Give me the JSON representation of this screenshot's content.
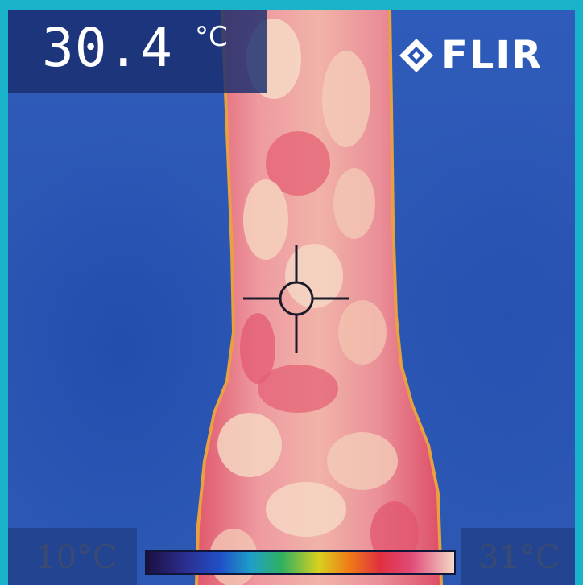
{
  "readout": {
    "value": "30.4",
    "unit": "°C"
  },
  "logo": {
    "text": "FLIR",
    "mark_icon": "flir-diamond-logo-icon"
  },
  "scale": {
    "min_label": "10°C",
    "max_label": "31°C",
    "palette": "iron"
  },
  "crosshair": {
    "icon": "spot-meter-crosshair-icon"
  },
  "colors": {
    "frame": "#1bb3c9",
    "background": "#2a55b4",
    "hot": "#e4586e",
    "warm": "#f0c8b0"
  }
}
